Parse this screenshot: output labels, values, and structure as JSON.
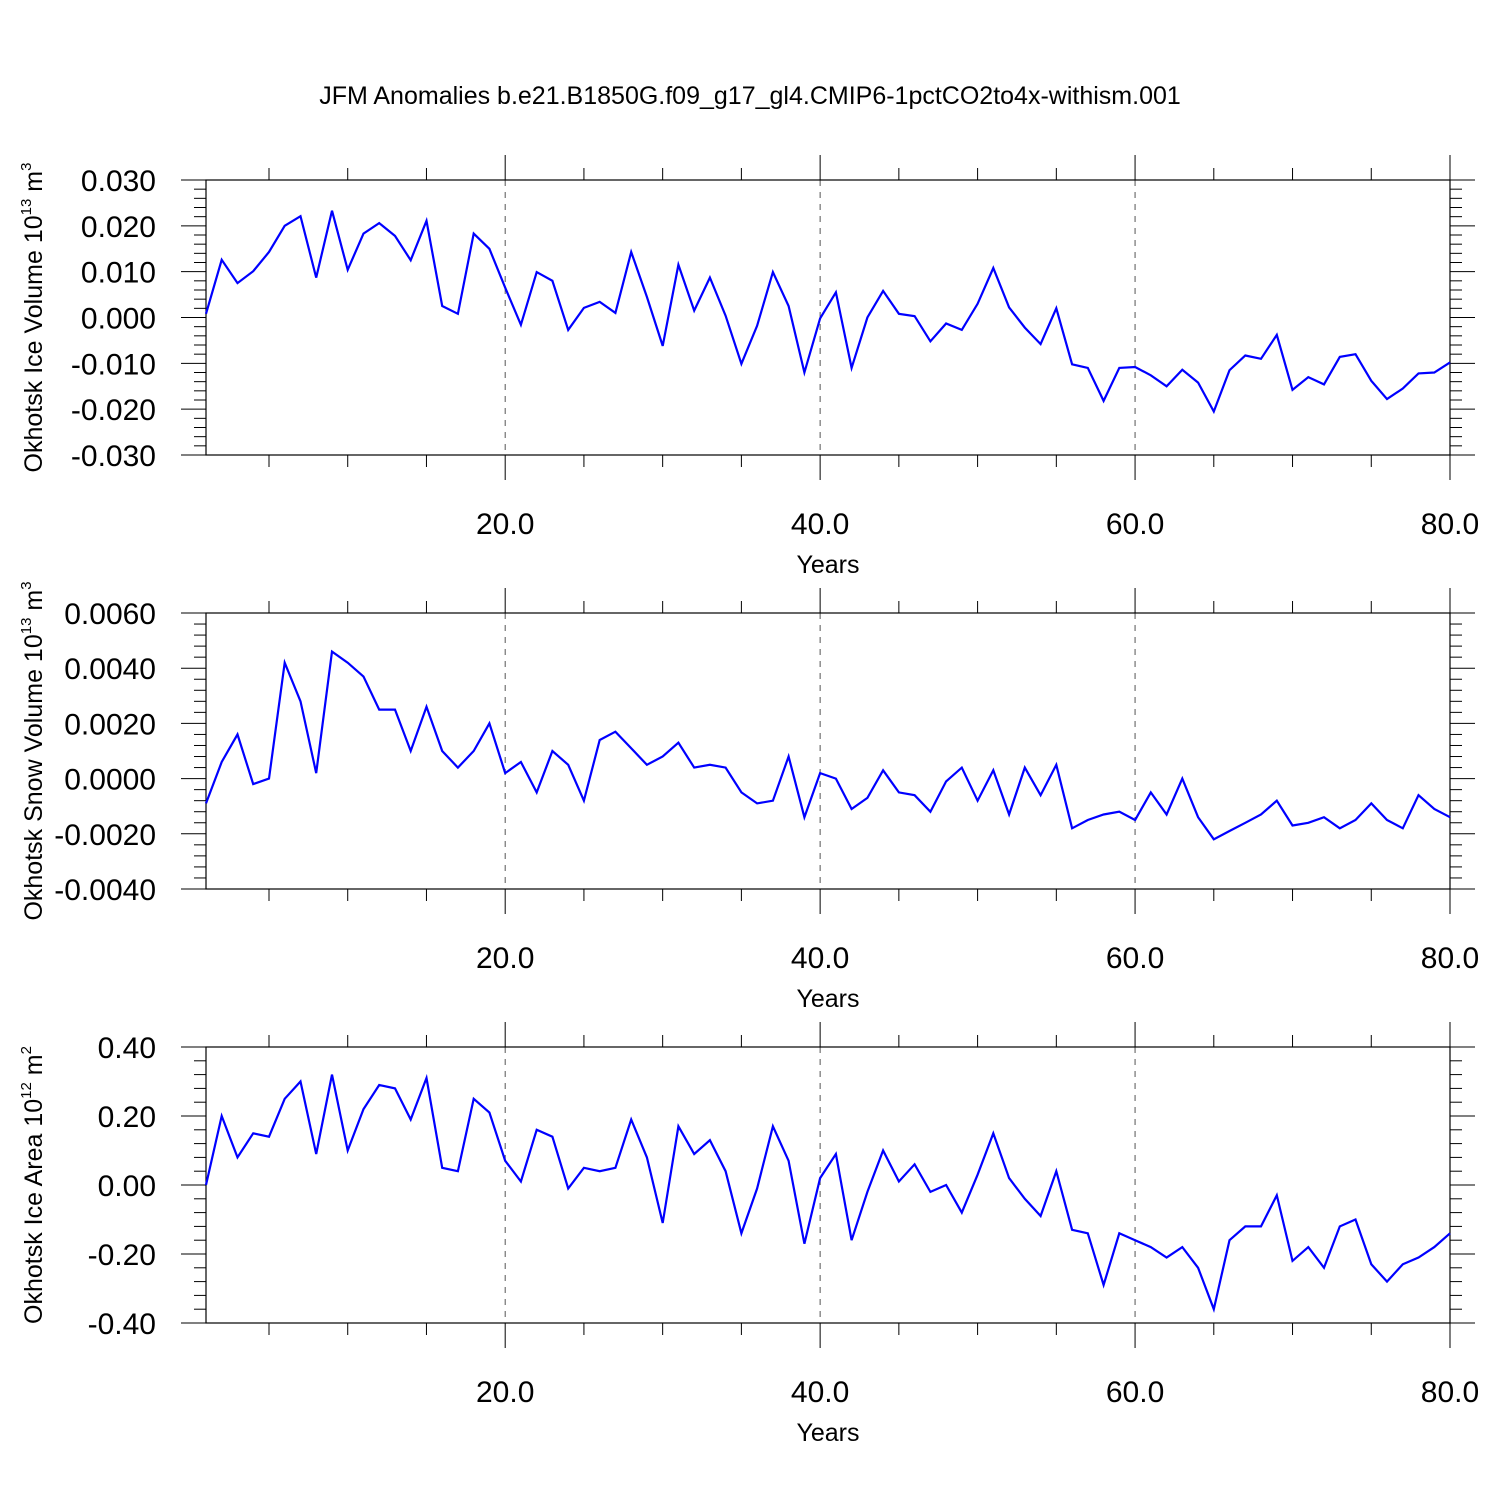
{
  "title": "JFM Anomalies b.e21.B1850G.f09_g17_gl4.CMIP6-1pctCO2to4x-withism.001",
  "colors": {
    "line": "#0000ff",
    "axis": "#000000",
    "grid": "#555555"
  },
  "chart_data": [
    {
      "type": "line",
      "ylabel": "Okhotsk Ice Volume 10",
      "yexp": "13",
      "yunit": " m",
      "yunitexp": "3",
      "xlabel": "Years",
      "xlim": [
        1,
        80
      ],
      "ylim": [
        -0.03,
        0.03
      ],
      "xticks": [
        20,
        40,
        60,
        80
      ],
      "xtick_labels": [
        "20.0",
        "40.0",
        "60.0",
        "80.0"
      ],
      "yticks": [
        -0.03,
        -0.02,
        -0.01,
        0.0,
        0.01,
        0.02,
        0.03
      ],
      "ytick_labels": [
        "-0.030",
        "-0.020",
        "-0.010",
        "0.000",
        "0.010",
        "0.020",
        "0.030"
      ],
      "x": [
        1,
        2,
        3,
        4,
        5,
        6,
        7,
        8,
        9,
        10,
        11,
        12,
        13,
        14,
        15,
        16,
        17,
        18,
        19,
        20,
        21,
        22,
        23,
        24,
        25,
        26,
        27,
        28,
        29,
        30,
        31,
        32,
        33,
        34,
        35,
        36,
        37,
        38,
        39,
        40,
        41,
        42,
        43,
        44,
        45,
        46,
        47,
        48,
        49,
        50,
        51,
        52,
        53,
        54,
        55,
        56,
        57,
        58,
        59,
        60,
        61,
        62,
        63,
        64,
        65,
        66,
        67,
        68,
        69,
        70,
        71,
        72,
        73,
        74,
        75,
        76,
        77,
        78,
        79,
        80
      ],
      "y": [
        0.0008,
        0.0126,
        0.0075,
        0.0101,
        0.0143,
        0.02,
        0.0221,
        0.0087,
        0.0233,
        0.0104,
        0.0183,
        0.0206,
        0.0178,
        0.0125,
        0.0211,
        0.0025,
        0.0008,
        0.0183,
        0.015,
        0.0065,
        -0.0016,
        0.0099,
        0.008,
        -0.0027,
        0.0021,
        0.0034,
        0.001,
        0.0143,
        0.0045,
        -0.0062,
        0.0115,
        0.0015,
        0.0087,
        0.0004,
        -0.0101,
        -0.0018,
        0.0099,
        0.0025,
        -0.012,
        -0.0002,
        0.0055,
        -0.011,
        0.0,
        0.0058,
        0.0008,
        0.0003,
        -0.0052,
        -0.0013,
        -0.0027,
        0.003,
        0.0108,
        0.0022,
        -0.0022,
        -0.0058,
        0.002,
        -0.0102,
        -0.011,
        -0.0182,
        -0.011,
        -0.0108,
        -0.0126,
        -0.015,
        -0.0114,
        -0.0142,
        -0.0205,
        -0.0115,
        -0.0083,
        -0.009,
        -0.0038,
        -0.0158,
        -0.013,
        -0.0146,
        -0.0086,
        -0.008,
        -0.0138,
        -0.0178,
        -0.0155,
        -0.0122,
        -0.012,
        -0.0098
      ]
    },
    {
      "type": "line",
      "ylabel": "Okhotsk Snow Volume 10",
      "yexp": "13",
      "yunit": " m",
      "yunitexp": "3",
      "xlabel": "Years",
      "xlim": [
        1,
        80
      ],
      "ylim": [
        -0.004,
        0.006
      ],
      "xticks": [
        20,
        40,
        60,
        80
      ],
      "xtick_labels": [
        "20.0",
        "40.0",
        "60.0",
        "80.0"
      ],
      "yticks": [
        -0.004,
        -0.002,
        0.0,
        0.002,
        0.004,
        0.006
      ],
      "ytick_labels": [
        "-0.0040",
        "-0.0020",
        "0.0000",
        "0.0020",
        "0.0040",
        "0.0060"
      ],
      "x": [
        1,
        2,
        3,
        4,
        5,
        6,
        7,
        8,
        9,
        10,
        11,
        12,
        13,
        14,
        15,
        16,
        17,
        18,
        19,
        20,
        21,
        22,
        23,
        24,
        25,
        26,
        27,
        28,
        29,
        30,
        31,
        32,
        33,
        34,
        35,
        36,
        37,
        38,
        39,
        40,
        41,
        42,
        43,
        44,
        45,
        46,
        47,
        48,
        49,
        50,
        51,
        52,
        53,
        54,
        55,
        56,
        57,
        58,
        59,
        60,
        61,
        62,
        63,
        64,
        65,
        66,
        67,
        68,
        69,
        70,
        71,
        72,
        73,
        74,
        75,
        76,
        77,
        78,
        79,
        80
      ],
      "y": [
        -0.0009,
        0.0006,
        0.0016,
        -0.0002,
        0.0,
        0.0042,
        0.0028,
        0.0002,
        0.0046,
        0.0042,
        0.0037,
        0.0025,
        0.0025,
        0.001,
        0.0026,
        0.001,
        0.0004,
        0.001,
        0.002,
        0.0002,
        0.0006,
        -0.0005,
        0.001,
        0.0005,
        -0.0008,
        0.0014,
        0.0017,
        0.0011,
        0.0005,
        0.0008,
        0.0013,
        0.0004,
        0.0005,
        0.0004,
        -0.0005,
        -0.0009,
        -0.0008,
        0.0008,
        -0.0014,
        0.0002,
        0.0,
        -0.0011,
        -0.0007,
        0.0003,
        -0.0005,
        -0.0006,
        -0.0012,
        -0.0001,
        0.0004,
        -0.0008,
        0.0003,
        -0.0013,
        0.0004,
        -0.0006,
        0.0005,
        -0.0018,
        -0.0015,
        -0.0013,
        -0.0012,
        -0.0015,
        -0.0005,
        -0.0013,
        0.0,
        -0.0014,
        -0.0022,
        -0.0019,
        -0.0016,
        -0.0013,
        -0.0008,
        -0.0017,
        -0.0016,
        -0.0014,
        -0.0018,
        -0.0015,
        -0.0009,
        -0.0015,
        -0.0018,
        -0.0006,
        -0.0011,
        -0.0014
      ]
    },
    {
      "type": "line",
      "ylabel": "Okhotsk Ice Area 10",
      "yexp": "12",
      "yunit": " m",
      "yunitexp": "2",
      "xlabel": "Years",
      "xlim": [
        1,
        80
      ],
      "ylim": [
        -0.4,
        0.4
      ],
      "xticks": [
        20,
        40,
        60,
        80
      ],
      "xtick_labels": [
        "20.0",
        "40.0",
        "60.0",
        "80.0"
      ],
      "yticks": [
        -0.4,
        -0.2,
        0.0,
        0.2,
        0.4
      ],
      "ytick_labels": [
        "-0.40",
        "-0.20",
        "0.00",
        "0.20",
        "0.40"
      ],
      "x": [
        1,
        2,
        3,
        4,
        5,
        6,
        7,
        8,
        9,
        10,
        11,
        12,
        13,
        14,
        15,
        16,
        17,
        18,
        19,
        20,
        21,
        22,
        23,
        24,
        25,
        26,
        27,
        28,
        29,
        30,
        31,
        32,
        33,
        34,
        35,
        36,
        37,
        38,
        39,
        40,
        41,
        42,
        43,
        44,
        45,
        46,
        47,
        48,
        49,
        50,
        51,
        52,
        53,
        54,
        55,
        56,
        57,
        58,
        59,
        60,
        61,
        62,
        63,
        64,
        65,
        66,
        67,
        68,
        69,
        70,
        71,
        72,
        73,
        74,
        75,
        76,
        77,
        78,
        79,
        80
      ],
      "y": [
        0.0,
        0.2,
        0.08,
        0.15,
        0.14,
        0.25,
        0.3,
        0.09,
        0.32,
        0.1,
        0.22,
        0.29,
        0.28,
        0.19,
        0.31,
        0.05,
        0.04,
        0.25,
        0.21,
        0.07,
        0.01,
        0.16,
        0.14,
        -0.01,
        0.05,
        0.04,
        0.05,
        0.19,
        0.08,
        -0.11,
        0.17,
        0.09,
        0.13,
        0.04,
        -0.14,
        -0.01,
        0.17,
        0.07,
        -0.17,
        0.02,
        0.09,
        -0.16,
        -0.02,
        0.1,
        0.01,
        0.06,
        -0.02,
        0.0,
        -0.08,
        0.03,
        0.15,
        0.02,
        -0.04,
        -0.09,
        0.04,
        -0.13,
        -0.14,
        -0.29,
        -0.14,
        -0.16,
        -0.18,
        -0.21,
        -0.18,
        -0.24,
        -0.36,
        -0.16,
        -0.12,
        -0.12,
        -0.03,
        -0.22,
        -0.18,
        -0.24,
        -0.12,
        -0.1,
        -0.23,
        -0.28,
        -0.23,
        -0.21,
        -0.18,
        -0.14
      ]
    }
  ]
}
